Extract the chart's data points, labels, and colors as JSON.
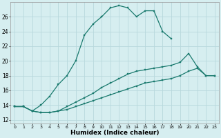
{
  "xlabel": "Humidex (Indice chaleur)",
  "bg_color": "#d6eef0",
  "grid_color": "#b8d8dc",
  "line_color": "#1a7a6e",
  "xlim": [
    -0.5,
    23.5
  ],
  "ylim": [
    11.5,
    28
  ],
  "xticks": [
    0,
    1,
    2,
    3,
    4,
    5,
    6,
    7,
    8,
    9,
    10,
    11,
    12,
    13,
    14,
    15,
    16,
    17,
    18,
    19,
    20,
    21,
    22,
    23
  ],
  "yticks": [
    12,
    14,
    16,
    18,
    20,
    22,
    24,
    26
  ],
  "series1_x": [
    0,
    1,
    2,
    3,
    4,
    5,
    6,
    7,
    8,
    9,
    10,
    11,
    12,
    13,
    14,
    15,
    16,
    17,
    18
  ],
  "series1_y": [
    13.8,
    13.8,
    13.2,
    14.0,
    15.2,
    16.8,
    18.0,
    20.0,
    23.5,
    25.0,
    26.0,
    27.2,
    27.5,
    27.2,
    26.0,
    26.8,
    26.8,
    24.0,
    23.0
  ],
  "series2_x": [
    0,
    1,
    2,
    3,
    4,
    5,
    6,
    7,
    8,
    9,
    10,
    11,
    12,
    13,
    14,
    15,
    16,
    17,
    18,
    19,
    20,
    21,
    22,
    23
  ],
  "series2_y": [
    13.8,
    13.8,
    13.2,
    13.0,
    13.0,
    13.2,
    13.4,
    13.8,
    14.2,
    14.6,
    15.0,
    15.4,
    15.8,
    16.2,
    16.6,
    17.0,
    17.2,
    17.4,
    17.6,
    18.0,
    18.6,
    19.0,
    18.0,
    18.0
  ],
  "series3_x": [
    0,
    1,
    2,
    3,
    4,
    5,
    6,
    7,
    8,
    9,
    10,
    11,
    12,
    13,
    14,
    15,
    16,
    17,
    18,
    19,
    20,
    21,
    22,
    23
  ],
  "series3_y": [
    13.8,
    13.8,
    13.2,
    13.0,
    13.0,
    13.2,
    13.8,
    14.4,
    15.0,
    15.6,
    16.4,
    17.0,
    17.6,
    18.2,
    18.6,
    18.8,
    19.0,
    19.2,
    19.4,
    19.8,
    21.0,
    19.2,
    18.0,
    18.0
  ]
}
